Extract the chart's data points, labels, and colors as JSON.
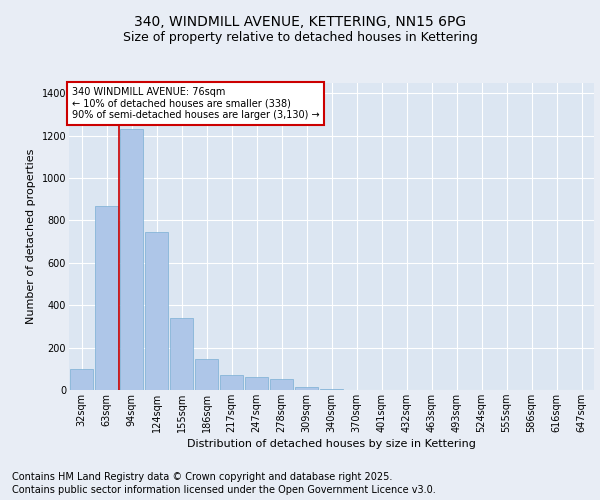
{
  "title": "340, WINDMILL AVENUE, KETTERING, NN15 6PG",
  "subtitle": "Size of property relative to detached houses in Kettering",
  "xlabel": "Distribution of detached houses by size in Kettering",
  "ylabel": "Number of detached properties",
  "bar_color": "#aec6e8",
  "bar_edge_color": "#7aafd4",
  "background_color": "#e8edf5",
  "plot_bg_color": "#dce6f2",
  "grid_color": "#ffffff",
  "vline_color": "#cc0000",
  "vline_x_index": 1.5,
  "annotation_box_color": "#cc0000",
  "annotation_title": "340 WINDMILL AVENUE: 76sqm",
  "annotation_line1": "← 10% of detached houses are smaller (338)",
  "annotation_line2": "90% of semi-detached houses are larger (3,130) →",
  "categories": [
    "32sqm",
    "63sqm",
    "94sqm",
    "124sqm",
    "155sqm",
    "186sqm",
    "217sqm",
    "247sqm",
    "278sqm",
    "309sqm",
    "340sqm",
    "370sqm",
    "401sqm",
    "432sqm",
    "463sqm",
    "493sqm",
    "524sqm",
    "555sqm",
    "586sqm",
    "616sqm",
    "647sqm"
  ],
  "values": [
    97,
    868,
    1230,
    744,
    340,
    148,
    70,
    60,
    50,
    12,
    5,
    0,
    0,
    0,
    0,
    0,
    0,
    0,
    0,
    0,
    0
  ],
  "ylim": [
    0,
    1450
  ],
  "yticks": [
    0,
    200,
    400,
    600,
    800,
    1000,
    1200,
    1400
  ],
  "footer_line1": "Contains HM Land Registry data © Crown copyright and database right 2025.",
  "footer_line2": "Contains public sector information licensed under the Open Government Licence v3.0.",
  "title_fontsize": 10,
  "subtitle_fontsize": 9,
  "axis_label_fontsize": 8,
  "tick_fontsize": 7,
  "footer_fontsize": 7
}
